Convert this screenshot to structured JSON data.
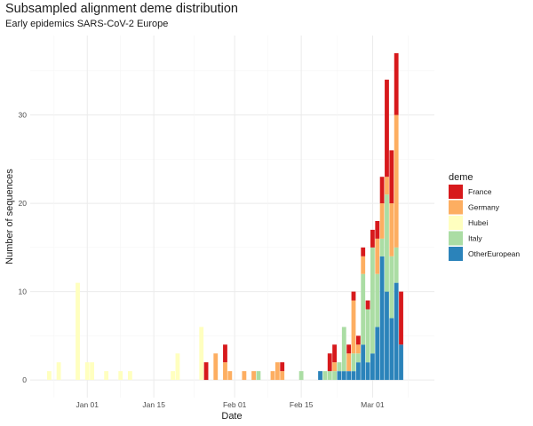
{
  "chart_data": {
    "type": "bar",
    "stacked": true,
    "title": "Subsampled alignment deme distribution",
    "subtitle": "Early epidemics SARS-CoV-2 Europe",
    "xlabel": "Date",
    "ylabel": "Number of sequences",
    "x_ticks": [
      "Jan 01",
      "Jan 15",
      "Feb 01",
      "Feb 15",
      "Mar 01"
    ],
    "x_tick_dates": [
      "2020-01-01",
      "2020-01-15",
      "2020-02-01",
      "2020-02-15",
      "2020-03-01"
    ],
    "y_ticks": [
      0,
      10,
      20,
      30
    ],
    "xlim": [
      "2019-12-20",
      "2020-03-14"
    ],
    "ylim": [
      -2,
      39
    ],
    "grid": true,
    "legend_title": "deme",
    "legend_position": "right",
    "series_order": [
      "OtherEuropean",
      "Italy",
      "Hubei",
      "Germany",
      "France"
    ],
    "legend": [
      {
        "name": "France",
        "color": "#d7191c"
      },
      {
        "name": "Germany",
        "color": "#fdae61"
      },
      {
        "name": "Hubei",
        "color": "#ffffbf"
      },
      {
        "name": "Italy",
        "color": "#abdda4"
      },
      {
        "name": "OtherEuropean",
        "color": "#2b83ba"
      }
    ],
    "bars": [
      {
        "date": "2019-12-24",
        "Hubei": 1
      },
      {
        "date": "2019-12-26",
        "Hubei": 2
      },
      {
        "date": "2019-12-30",
        "Hubei": 11
      },
      {
        "date": "2020-01-01",
        "Hubei": 2
      },
      {
        "date": "2020-01-02",
        "Hubei": 2
      },
      {
        "date": "2020-01-05",
        "Hubei": 1
      },
      {
        "date": "2020-01-08",
        "Hubei": 1
      },
      {
        "date": "2020-01-10",
        "Hubei": 1
      },
      {
        "date": "2020-01-19",
        "Hubei": 1
      },
      {
        "date": "2020-01-20",
        "Hubei": 3
      },
      {
        "date": "2020-01-25",
        "Hubei": 6
      },
      {
        "date": "2020-01-26",
        "France": 2
      },
      {
        "date": "2020-01-28",
        "Germany": 3
      },
      {
        "date": "2020-01-30",
        "Germany": 2,
        "France": 2
      },
      {
        "date": "2020-01-31",
        "Germany": 1
      },
      {
        "date": "2020-02-03",
        "Germany": 1
      },
      {
        "date": "2020-02-05",
        "Germany": 1
      },
      {
        "date": "2020-02-06",
        "Italy": 1
      },
      {
        "date": "2020-02-09",
        "Germany": 1
      },
      {
        "date": "2020-02-10",
        "Germany": 2
      },
      {
        "date": "2020-02-11",
        "Germany": 1,
        "France": 1
      },
      {
        "date": "2020-02-15",
        "Italy": 1
      },
      {
        "date": "2020-02-19",
        "OtherEuropean": 1
      },
      {
        "date": "2020-02-20",
        "Italy": 1
      },
      {
        "date": "2020-02-21",
        "Italy": 1,
        "France": 2
      },
      {
        "date": "2020-02-22",
        "Italy": 1,
        "Germany": 1,
        "France": 2
      },
      {
        "date": "2020-02-23",
        "OtherEuropean": 1,
        "Italy": 1
      },
      {
        "date": "2020-02-24",
        "OtherEuropean": 1,
        "Italy": 5
      },
      {
        "date": "2020-02-25",
        "OtherEuropean": 1,
        "Germany": 2,
        "France": 1
      },
      {
        "date": "2020-02-26",
        "OtherEuropean": 1,
        "Italy": 2,
        "Germany": 6,
        "France": 1
      },
      {
        "date": "2020-02-27",
        "OtherEuropean": 2,
        "Italy": 1,
        "Germany": 1,
        "France": 1
      },
      {
        "date": "2020-02-28",
        "OtherEuropean": 4,
        "Italy": 8,
        "Germany": 2,
        "France": 1
      },
      {
        "date": "2020-02-29",
        "OtherEuropean": 2,
        "Italy": 6,
        "France": 1
      },
      {
        "date": "2020-03-01",
        "OtherEuropean": 3,
        "Italy": 12,
        "France": 2
      },
      {
        "date": "2020-03-02",
        "OtherEuropean": 6,
        "Italy": 6,
        "Germany": 4,
        "France": 2
      },
      {
        "date": "2020-03-03",
        "OtherEuropean": 14,
        "Italy": 2,
        "Germany": 4,
        "France": 3
      },
      {
        "date": "2020-03-04",
        "OtherEuropean": 10,
        "Italy": 11,
        "Germany": 2,
        "France": 11
      },
      {
        "date": "2020-03-05",
        "OtherEuropean": 7,
        "Italy": 7,
        "Germany": 6,
        "France": 6
      },
      {
        "date": "2020-03-06",
        "OtherEuropean": 11,
        "Italy": 4,
        "Germany": 15,
        "France": 7
      },
      {
        "date": "2020-03-07",
        "OtherEuropean": 4,
        "France": 6
      }
    ]
  }
}
